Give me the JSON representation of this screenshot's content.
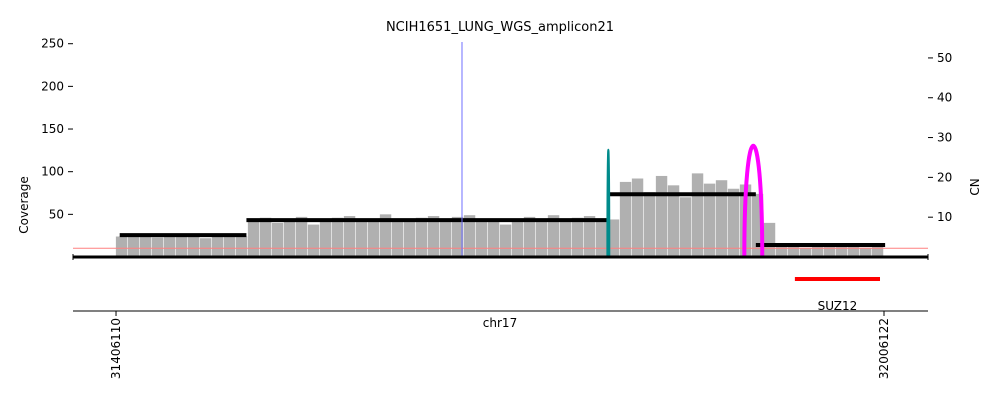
{
  "chart_data": {
    "type": "amplicon",
    "title": "NCIH1651_LUNG_WGS_amplicon21",
    "x_label": "chr17",
    "y_label": "Coverage",
    "y2_label": "CN",
    "xlim": [
      31372500,
      32040500
    ],
    "xticks": [
      31406110,
      32006122
    ],
    "ylim": [
      0,
      252
    ],
    "yticks": [
      50,
      100,
      150,
      200,
      250
    ],
    "y2lim": [
      0,
      54
    ],
    "y2ticks": [
      10,
      20,
      30,
      40,
      50
    ],
    "coverage": {
      "color": "#b0b0b0",
      "bins": [
        31406000,
        31415375,
        31424750,
        31434125,
        31443500,
        31452875,
        31462250,
        31471625,
        31481000,
        31490375,
        31499750,
        31509125,
        31518500,
        31527875,
        31537250,
        31546625,
        31556000,
        31565375,
        31574750,
        31584125,
        31593500,
        31602875,
        31612250,
        31621625,
        31631000,
        31640375,
        31649750,
        31659125,
        31668500,
        31677875,
        31687250,
        31696625,
        31706000,
        31715375,
        31724750,
        31734125,
        31743500,
        31752875,
        31762250,
        31771625,
        31781000,
        31790375,
        31799750,
        31809125,
        31818500,
        31827875,
        31837250,
        31846625,
        31856000,
        31865375,
        31874750,
        31884125,
        31893500,
        31902875,
        31912250,
        31921625,
        31931000,
        31940375,
        31949750,
        31959125,
        31968500,
        31977875,
        31987250,
        31996625,
        32006000
      ],
      "values": [
        24,
        26,
        25,
        23,
        25,
        24,
        26,
        22,
        25,
        27,
        24,
        44,
        46,
        40,
        45,
        47,
        38,
        44,
        46,
        48,
        42,
        45,
        50,
        44,
        41,
        46,
        48,
        43,
        47,
        49,
        45,
        42,
        38,
        44,
        47,
        45,
        49,
        43,
        46,
        48,
        45,
        44,
        88,
        92,
        76,
        95,
        84,
        70,
        98,
        86,
        90,
        80,
        85,
        74,
        40,
        12,
        13,
        11,
        12,
        14,
        12,
        13,
        11,
        12
      ]
    },
    "segments": {
      "color": "#000000",
      "start": [
        31409000,
        31508000,
        31792000,
        31906000
      ],
      "end": [
        31508000,
        31792000,
        31906000,
        32007000
      ],
      "values": [
        5.5,
        9.25,
        15.75,
        3
      ]
    },
    "reference_line": {
      "color": "#ff8080",
      "value": 2.2
    },
    "breakpoints": [
      {
        "start": 31676414,
        "end": 31676414,
        "height": 54,
        "color": "#7070ff"
      },
      {
        "start": 31790000,
        "end": 31791500,
        "height": 27,
        "color": "#008b8b"
      },
      {
        "start": 31897000,
        "end": 31911000,
        "height": 28,
        "color": "#ff00ff"
      }
    ],
    "genes": [
      {
        "name": "SUZ12",
        "start": 31936500,
        "end": 32003000,
        "color": "#ff0000"
      }
    ]
  }
}
